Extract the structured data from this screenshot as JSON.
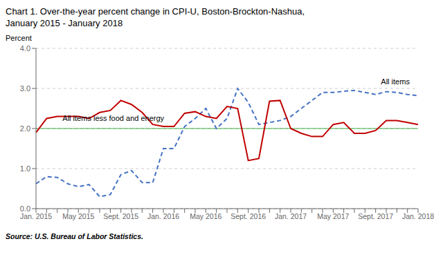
{
  "chart_data": {
    "type": "line",
    "title": "Chart 1.  Over-the-year percent change in CPI-U, Boston-Brockton-Nashua,",
    "subtitle": "January 2015 - January 2018",
    "y_label": "Percent",
    "source": "Source: U.S. Bureau of Labor Statistics.",
    "categories": [
      "Jan. 2015",
      null,
      null,
      null,
      "May 2015",
      null,
      null,
      null,
      "Sept. 2015",
      null,
      null,
      null,
      "Jan. 2016",
      null,
      null,
      null,
      "May 2016",
      null,
      null,
      null,
      "Sept. 2016",
      null,
      null,
      null,
      "Jan. 2017",
      null,
      null,
      null,
      "May 2017",
      null,
      null,
      null,
      "Sept. 2017",
      null,
      null,
      null,
      "Jan. 2018"
    ],
    "series": [
      {
        "name": "All items",
        "color": "#4472C4",
        "line_style": "dashed",
        "values": [
          0.62,
          0.8,
          0.78,
          0.62,
          0.55,
          0.6,
          0.3,
          0.35,
          0.85,
          0.95,
          0.65,
          0.65,
          1.5,
          1.5,
          2.05,
          2.25,
          2.5,
          2.0,
          2.25,
          3.0,
          2.65,
          2.1,
          2.15,
          2.2,
          2.3,
          2.5,
          2.7,
          2.9,
          2.9,
          2.93,
          2.95,
          2.9,
          2.85,
          2.92,
          2.9,
          2.85,
          2.82
        ]
      },
      {
        "name": "All items less food and energy",
        "color": "#C00000",
        "line_style": "solid",
        "values": [
          1.9,
          2.25,
          2.3,
          2.3,
          2.3,
          2.25,
          2.4,
          2.45,
          2.7,
          2.6,
          2.4,
          2.1,
          2.05,
          2.05,
          2.38,
          2.42,
          2.3,
          2.25,
          2.55,
          2.5,
          1.2,
          1.25,
          2.68,
          2.7,
          2.0,
          1.88,
          1.8,
          1.8,
          2.1,
          2.15,
          1.88,
          1.88,
          1.95,
          2.2,
          2.2,
          2.15,
          2.1
        ]
      }
    ],
    "annotations": [
      {
        "text": "All items",
        "x": 32.5,
        "y": 3.05
      },
      {
        "text": "All items less food and energy",
        "x": 2.5,
        "y": 2.13
      }
    ],
    "reference_line": {
      "value": 2.0,
      "color": "#3CB043"
    },
    "ylim": [
      0.0,
      4.0
    ],
    "yticks": [
      {
        "value": 0.0,
        "label": "0.0"
      },
      {
        "value": 1.0,
        "label": "1.0"
      },
      {
        "value": 2.0,
        "label": "2.0"
      },
      {
        "value": 3.0,
        "label": "3.0"
      },
      {
        "value": 4.0,
        "label": "4.0"
      }
    ],
    "grid": true
  }
}
